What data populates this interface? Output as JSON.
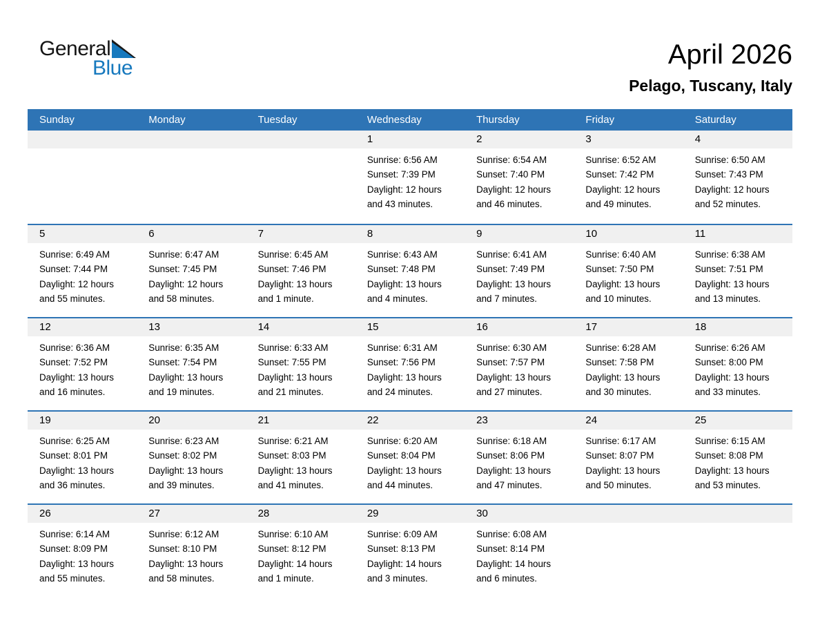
{
  "logo": {
    "text_general": "General",
    "text_blue": "Blue"
  },
  "title": "April 2026",
  "subtitle": "Pelago, Tuscany, Italy",
  "weekdays": [
    "Sunday",
    "Monday",
    "Tuesday",
    "Wednesday",
    "Thursday",
    "Friday",
    "Saturday"
  ],
  "colors": {
    "header_bg": "#2E74B5",
    "row_border": "#2E74B5",
    "number_band_bg": "#F0F0F0",
    "logo_blue": "#1779BE",
    "header_text": "#FFFFFF"
  },
  "weeks": [
    [
      {
        "day": "",
        "lines": []
      },
      {
        "day": "",
        "lines": []
      },
      {
        "day": "",
        "lines": []
      },
      {
        "day": "1",
        "lines": [
          "Sunrise: 6:56 AM",
          "Sunset: 7:39 PM",
          "Daylight: 12 hours",
          "and 43 minutes."
        ]
      },
      {
        "day": "2",
        "lines": [
          "Sunrise: 6:54 AM",
          "Sunset: 7:40 PM",
          "Daylight: 12 hours",
          "and 46 minutes."
        ]
      },
      {
        "day": "3",
        "lines": [
          "Sunrise: 6:52 AM",
          "Sunset: 7:42 PM",
          "Daylight: 12 hours",
          "and 49 minutes."
        ]
      },
      {
        "day": "4",
        "lines": [
          "Sunrise: 6:50 AM",
          "Sunset: 7:43 PM",
          "Daylight: 12 hours",
          "and 52 minutes."
        ]
      }
    ],
    [
      {
        "day": "5",
        "lines": [
          "Sunrise: 6:49 AM",
          "Sunset: 7:44 PM",
          "Daylight: 12 hours",
          "and 55 minutes."
        ]
      },
      {
        "day": "6",
        "lines": [
          "Sunrise: 6:47 AM",
          "Sunset: 7:45 PM",
          "Daylight: 12 hours",
          "and 58 minutes."
        ]
      },
      {
        "day": "7",
        "lines": [
          "Sunrise: 6:45 AM",
          "Sunset: 7:46 PM",
          "Daylight: 13 hours",
          "and 1 minute."
        ]
      },
      {
        "day": "8",
        "lines": [
          "Sunrise: 6:43 AM",
          "Sunset: 7:48 PM",
          "Daylight: 13 hours",
          "and 4 minutes."
        ]
      },
      {
        "day": "9",
        "lines": [
          "Sunrise: 6:41 AM",
          "Sunset: 7:49 PM",
          "Daylight: 13 hours",
          "and 7 minutes."
        ]
      },
      {
        "day": "10",
        "lines": [
          "Sunrise: 6:40 AM",
          "Sunset: 7:50 PM",
          "Daylight: 13 hours",
          "and 10 minutes."
        ]
      },
      {
        "day": "11",
        "lines": [
          "Sunrise: 6:38 AM",
          "Sunset: 7:51 PM",
          "Daylight: 13 hours",
          "and 13 minutes."
        ]
      }
    ],
    [
      {
        "day": "12",
        "lines": [
          "Sunrise: 6:36 AM",
          "Sunset: 7:52 PM",
          "Daylight: 13 hours",
          "and 16 minutes."
        ]
      },
      {
        "day": "13",
        "lines": [
          "Sunrise: 6:35 AM",
          "Sunset: 7:54 PM",
          "Daylight: 13 hours",
          "and 19 minutes."
        ]
      },
      {
        "day": "14",
        "lines": [
          "Sunrise: 6:33 AM",
          "Sunset: 7:55 PM",
          "Daylight: 13 hours",
          "and 21 minutes."
        ]
      },
      {
        "day": "15",
        "lines": [
          "Sunrise: 6:31 AM",
          "Sunset: 7:56 PM",
          "Daylight: 13 hours",
          "and 24 minutes."
        ]
      },
      {
        "day": "16",
        "lines": [
          "Sunrise: 6:30 AM",
          "Sunset: 7:57 PM",
          "Daylight: 13 hours",
          "and 27 minutes."
        ]
      },
      {
        "day": "17",
        "lines": [
          "Sunrise: 6:28 AM",
          "Sunset: 7:58 PM",
          "Daylight: 13 hours",
          "and 30 minutes."
        ]
      },
      {
        "day": "18",
        "lines": [
          "Sunrise: 6:26 AM",
          "Sunset: 8:00 PM",
          "Daylight: 13 hours",
          "and 33 minutes."
        ]
      }
    ],
    [
      {
        "day": "19",
        "lines": [
          "Sunrise: 6:25 AM",
          "Sunset: 8:01 PM",
          "Daylight: 13 hours",
          "and 36 minutes."
        ]
      },
      {
        "day": "20",
        "lines": [
          "Sunrise: 6:23 AM",
          "Sunset: 8:02 PM",
          "Daylight: 13 hours",
          "and 39 minutes."
        ]
      },
      {
        "day": "21",
        "lines": [
          "Sunrise: 6:21 AM",
          "Sunset: 8:03 PM",
          "Daylight: 13 hours",
          "and 41 minutes."
        ]
      },
      {
        "day": "22",
        "lines": [
          "Sunrise: 6:20 AM",
          "Sunset: 8:04 PM",
          "Daylight: 13 hours",
          "and 44 minutes."
        ]
      },
      {
        "day": "23",
        "lines": [
          "Sunrise: 6:18 AM",
          "Sunset: 8:06 PM",
          "Daylight: 13 hours",
          "and 47 minutes."
        ]
      },
      {
        "day": "24",
        "lines": [
          "Sunrise: 6:17 AM",
          "Sunset: 8:07 PM",
          "Daylight: 13 hours",
          "and 50 minutes."
        ]
      },
      {
        "day": "25",
        "lines": [
          "Sunrise: 6:15 AM",
          "Sunset: 8:08 PM",
          "Daylight: 13 hours",
          "and 53 minutes."
        ]
      }
    ],
    [
      {
        "day": "26",
        "lines": [
          "Sunrise: 6:14 AM",
          "Sunset: 8:09 PM",
          "Daylight: 13 hours",
          "and 55 minutes."
        ]
      },
      {
        "day": "27",
        "lines": [
          "Sunrise: 6:12 AM",
          "Sunset: 8:10 PM",
          "Daylight: 13 hours",
          "and 58 minutes."
        ]
      },
      {
        "day": "28",
        "lines": [
          "Sunrise: 6:10 AM",
          "Sunset: 8:12 PM",
          "Daylight: 14 hours",
          "and 1 minute."
        ]
      },
      {
        "day": "29",
        "lines": [
          "Sunrise: 6:09 AM",
          "Sunset: 8:13 PM",
          "Daylight: 14 hours",
          "and 3 minutes."
        ]
      },
      {
        "day": "30",
        "lines": [
          "Sunrise: 6:08 AM",
          "Sunset: 8:14 PM",
          "Daylight: 14 hours",
          "and 6 minutes."
        ]
      },
      {
        "day": "",
        "lines": []
      },
      {
        "day": "",
        "lines": []
      }
    ]
  ]
}
